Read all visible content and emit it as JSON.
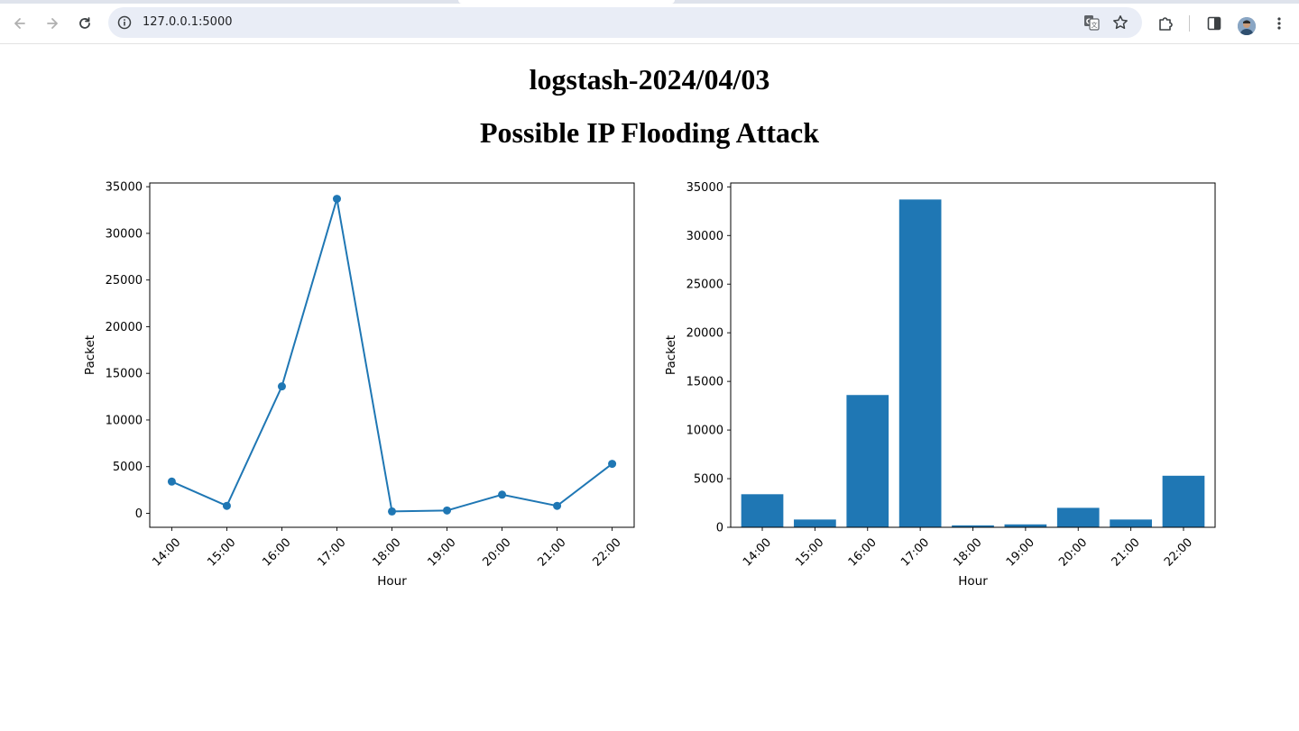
{
  "browser": {
    "url": "127.0.0.1:5000",
    "icons": {
      "back": "back-arrow-icon",
      "forward": "forward-arrow-icon",
      "reload": "reload-icon",
      "site_info": "site-info-icon",
      "translate": "translate-icon",
      "bookmark": "star-icon",
      "extensions": "puzzle-icon",
      "side_panel": "side-panel-icon",
      "profile": "avatar",
      "menu": "kebab-menu-icon"
    }
  },
  "page": {
    "title": "logstash-2024/04/03",
    "subtitle": "Possible IP Flooding Attack"
  },
  "chart_data": [
    {
      "type": "line",
      "categories": [
        "14:00",
        "15:00",
        "16:00",
        "17:00",
        "18:00",
        "19:00",
        "20:00",
        "21:00",
        "22:00"
      ],
      "values": [
        3400,
        800,
        13600,
        33700,
        200,
        300,
        2000,
        800,
        5300
      ],
      "xlabel": "Hour",
      "ylabel": "Packet",
      "yticks": [
        0,
        5000,
        10000,
        15000,
        20000,
        25000,
        30000,
        35000
      ],
      "ylim": [
        -1500,
        35400
      ],
      "markers": true,
      "color": "#1f77b4",
      "grid": false
    },
    {
      "type": "bar",
      "categories": [
        "14:00",
        "15:00",
        "16:00",
        "17:00",
        "18:00",
        "19:00",
        "20:00",
        "21:00",
        "22:00"
      ],
      "values": [
        3400,
        800,
        13600,
        33700,
        200,
        300,
        2000,
        800,
        5300
      ],
      "xlabel": "Hour",
      "ylabel": "Packet",
      "yticks": [
        0,
        5000,
        10000,
        15000,
        20000,
        25000,
        30000,
        35000
      ],
      "ylim": [
        0,
        35400
      ],
      "color": "#1f77b4",
      "grid": false
    }
  ]
}
